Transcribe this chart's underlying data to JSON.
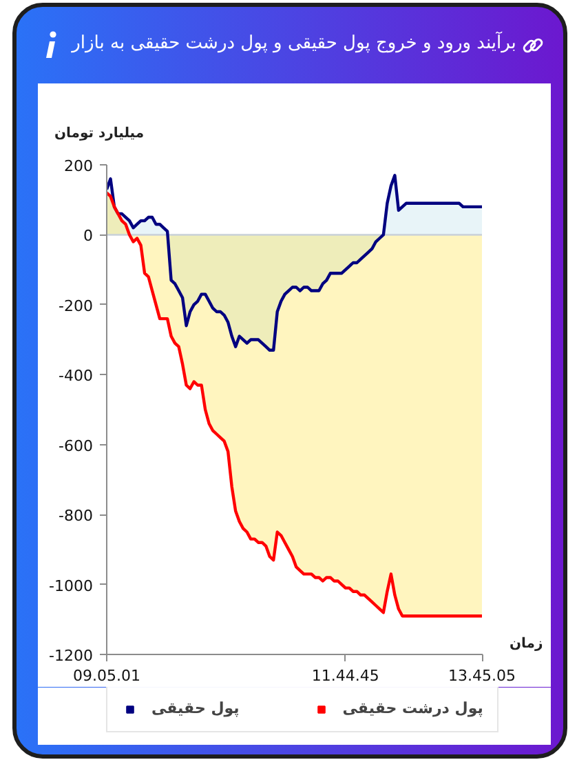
{
  "chart_data": {
    "type": "area",
    "title": "برآیند ورود و خروج پول حقیقی و پول درشت حقیقی به بازار",
    "xlabel": "زمان",
    "ylabel": "میلیارد تومان",
    "categories": [
      "09.05.01",
      null,
      null,
      null,
      null,
      null,
      null,
      null,
      null,
      null,
      null,
      null,
      null,
      null,
      null,
      null,
      null,
      null,
      null,
      null,
      null,
      null,
      null,
      null,
      null,
      null,
      null,
      null,
      null,
      null,
      null,
      null,
      null,
      null,
      null,
      null,
      null,
      null,
      null,
      null,
      null,
      null,
      null,
      null,
      null,
      null,
      null,
      null,
      null,
      null,
      null,
      null,
      null,
      null,
      null,
      null,
      null,
      null,
      null,
      null,
      null,
      null,
      null,
      "11.44.45",
      null,
      null,
      null,
      null,
      null,
      null,
      null,
      null,
      null,
      null,
      null,
      null,
      null,
      null,
      null,
      null,
      null,
      null,
      null,
      null,
      null,
      null,
      null,
      null,
      null,
      null,
      null,
      null,
      null,
      null,
      null,
      null,
      null,
      null,
      null,
      "13.45.05"
    ],
    "series": [
      {
        "name": "پول حقیقی",
        "color": "#000080",
        "values": [
          130,
          160,
          80,
          60,
          60,
          50,
          40,
          20,
          30,
          40,
          40,
          50,
          50,
          30,
          30,
          20,
          10,
          -130,
          -140,
          -160,
          -180,
          -260,
          -220,
          -200,
          -190,
          -170,
          -170,
          -190,
          -210,
          -220,
          -220,
          -230,
          -250,
          -290,
          -320,
          -290,
          -300,
          -310,
          -300,
          -300,
          -300,
          -310,
          -320,
          -330,
          -330,
          -220,
          -190,
          -170,
          -160,
          -150,
          -150,
          -160,
          -150,
          -150,
          -160,
          -160,
          -160,
          -140,
          -130,
          -110,
          -110,
          -110,
          -110,
          -100,
          -90,
          -80,
          -80,
          -70,
          -60,
          -50,
          -40,
          -20,
          -10,
          0,
          90,
          140,
          170,
          70,
          80,
          90,
          90,
          90,
          90,
          90,
          90,
          90,
          90,
          90,
          90,
          90,
          90,
          90,
          90,
          90,
          80,
          80,
          80,
          80,
          80,
          80
        ]
      },
      {
        "name": "پول درشت حقیقی",
        "color": "#ff0000",
        "values": [
          120,
          110,
          80,
          60,
          40,
          30,
          0,
          -20,
          -10,
          -30,
          -110,
          -120,
          -160,
          -200,
          -240,
          -240,
          -240,
          -290,
          -310,
          -320,
          -370,
          -430,
          -440,
          -420,
          -430,
          -430,
          -500,
          -540,
          -560,
          -570,
          -580,
          -590,
          -620,
          -720,
          -790,
          -820,
          -840,
          -850,
          -870,
          -870,
          -880,
          -880,
          -890,
          -920,
          -930,
          -850,
          -860,
          -880,
          -900,
          -920,
          -950,
          -960,
          -970,
          -970,
          -970,
          -980,
          -980,
          -990,
          -980,
          -980,
          -990,
          -990,
          -1000,
          -1010,
          -1010,
          -1020,
          -1020,
          -1030,
          -1030,
          -1040,
          -1050,
          -1060,
          -1070,
          -1080,
          -1020,
          -970,
          -1030,
          -1070,
          -1090,
          -1090,
          -1090,
          -1090,
          -1090,
          -1090,
          -1090,
          -1090,
          -1090,
          -1090,
          -1090,
          -1090,
          -1090,
          -1090,
          -1090,
          -1090,
          -1090,
          -1090,
          -1090,
          -1090,
          -1090,
          -1090
        ]
      }
    ],
    "ylim": [
      -1200,
      200
    ],
    "yticks": [
      -1200,
      -1000,
      -800,
      -600,
      -400,
      -200,
      0,
      200
    ],
    "ref_lines": [
      {
        "axis": "y",
        "value": 0,
        "color": "#c8d0d8"
      }
    ],
    "grid": false,
    "legend": "bottom"
  }
}
